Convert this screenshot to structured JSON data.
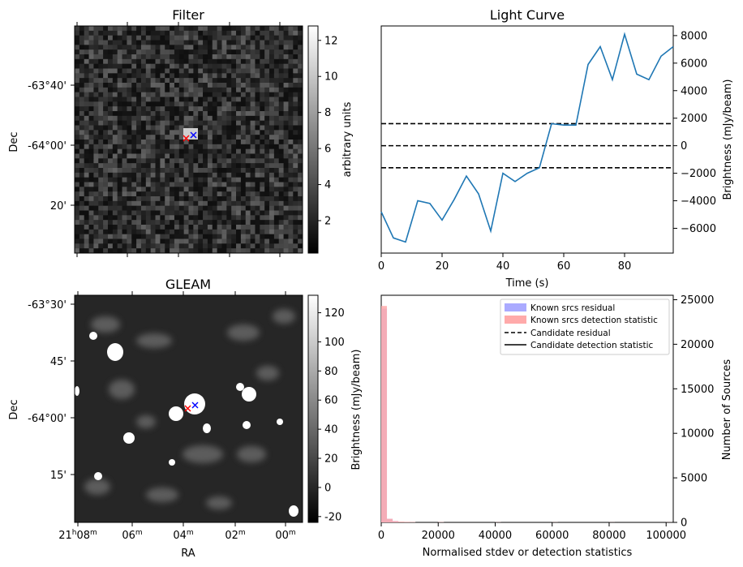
{
  "colors": {
    "line": "#1f77b4",
    "known_residual": "#aaaaff",
    "known_detection": "#ffaaaa",
    "black": "#000000"
  },
  "chart_data": [
    {
      "type": "heatmap",
      "title": "Filter",
      "ylabel": "Dec",
      "xlabel": "",
      "yticks": [
        "-63°40'",
        "-64°00'",
        "20'"
      ],
      "colorbar": {
        "label": "arbitrary units",
        "range": [
          0.2,
          12.8
        ],
        "ticks": [
          2,
          4,
          6,
          8,
          10,
          12
        ]
      },
      "markers": [
        {
          "name": "candidate",
          "color": "red",
          "symbol": "x"
        },
        {
          "name": "known source",
          "color": "blue",
          "symbol": "x"
        }
      ]
    },
    {
      "type": "line",
      "title": "Light Curve",
      "xlabel": "Time (s)",
      "ylabel": "Brightness (mJy/beam)",
      "xlim": [
        0,
        96
      ],
      "ylim": [
        -7800,
        8700
      ],
      "xticks": [
        0,
        20,
        40,
        60,
        80
      ],
      "yticks": [
        -6000,
        -4000,
        -2000,
        0,
        2000,
        4000,
        6000,
        8000
      ],
      "x": [
        0,
        4,
        8,
        12,
        16,
        20,
        24,
        28,
        32,
        36,
        40,
        44,
        48,
        52,
        56,
        60,
        64,
        68,
        72,
        76,
        80,
        84,
        88,
        92,
        96
      ],
      "y": [
        -4800,
        -6700,
        -7000,
        -4000,
        -4200,
        -5400,
        -3900,
        -2200,
        -3500,
        -6200,
        -2000,
        -2600,
        -2000,
        -1600,
        1600,
        1500,
        1500,
        5900,
        7200,
        4800,
        8100,
        5200,
        4800,
        6500,
        7200
      ],
      "hlines": [
        {
          "value": 1600,
          "style": "dashed"
        },
        {
          "value": 0,
          "style": "dashed"
        },
        {
          "value": -1600,
          "style": "dashed"
        }
      ]
    },
    {
      "type": "heatmap",
      "title": "GLEAM",
      "xlabel": "RA",
      "ylabel": "Dec",
      "xticks": [
        {
          "base": "21",
          "sup": "h",
          "main": "08",
          "sup2": "m"
        },
        {
          "main": "06",
          "sup2": "m"
        },
        {
          "main": "04",
          "sup2": "m"
        },
        {
          "main": "02",
          "sup2": "m"
        },
        {
          "main": "00",
          "sup2": "m"
        }
      ],
      "yticks": [
        "-63°30'",
        "45'",
        "-64°00'",
        "15'"
      ],
      "colorbar": {
        "label": "Brightness (mJy/beam)",
        "range": [
          -24,
          132
        ],
        "ticks": [
          -20,
          0,
          20,
          40,
          60,
          80,
          100,
          120
        ]
      },
      "markers": [
        {
          "name": "candidate",
          "color": "red",
          "symbol": "x"
        },
        {
          "name": "known source",
          "color": "blue",
          "symbol": "x"
        }
      ]
    },
    {
      "type": "bar",
      "title": "",
      "xlabel": "Normalised stdev or detection statistics",
      "ylabel": "Number of Sources",
      "xlim": [
        0,
        102500
      ],
      "ylim": [
        0,
        25500
      ],
      "xticks": [
        "0",
        "20000",
        "40000",
        "60000",
        "80000",
        "100000"
      ],
      "xtick_values": [
        0,
        20000,
        40000,
        60000,
        80000,
        100000
      ],
      "ytick_values": [
        0,
        5000,
        10000,
        15000,
        20000,
        25000
      ],
      "yticks": [
        "0",
        "5000",
        "10000",
        "15000",
        "20000",
        "25000"
      ],
      "series": [
        {
          "name": "Known srcs residual",
          "bin_width": 2000,
          "bins_start": [
            0,
            2000,
            4000
          ],
          "values": [
            24000,
            400,
            150
          ]
        },
        {
          "name": "Known srcs detection statistic",
          "bin_width": 2000,
          "bins_start": [
            0,
            2000,
            4000,
            6000,
            8000,
            10000,
            20000,
            40000,
            60000,
            80000,
            100000
          ],
          "values": [
            24300,
            400,
            150,
            80,
            60,
            40,
            30,
            20,
            15,
            10,
            10
          ]
        }
      ],
      "legend": [
        {
          "label": "Known srcs residual",
          "kind": "patch",
          "color": "#aaaaff"
        },
        {
          "label": "Known srcs detection statistic",
          "kind": "patch",
          "color": "#ffaaaa"
        },
        {
          "label": "Candidate residual",
          "kind": "dashed"
        },
        {
          "label": "Candidate detection statistic",
          "kind": "solid"
        }
      ]
    }
  ]
}
